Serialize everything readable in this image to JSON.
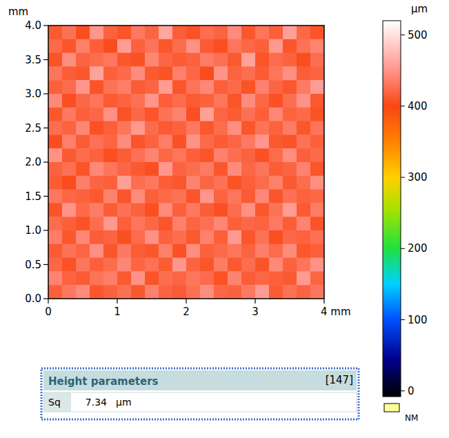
{
  "chart_data": {
    "type": "heatmap",
    "ylabel": "mm",
    "xlim": [
      0,
      4
    ],
    "ylim": [
      0,
      4
    ],
    "xticks": [
      0,
      1,
      2,
      3,
      {
        "value": 4,
        "label": "4 mm"
      }
    ],
    "yticks": [
      {
        "value": 0,
        "label": "0.0"
      },
      0.5,
      {
        "value": 1,
        "label": "1.0"
      },
      1.5,
      {
        "value": 2,
        "label": "2.0"
      },
      2.5,
      {
        "value": 3,
        "label": "3.0"
      },
      3.5,
      {
        "value": 4,
        "label": "4.0"
      }
    ],
    "z": [
      [
        412,
        428,
        405,
        451,
        418,
        409,
        433,
        420,
        462,
        415,
        407,
        426,
        419,
        444,
        411,
        430,
        416,
        458,
        421,
        409
      ],
      [
        423,
        410,
        437,
        416,
        404,
        456,
        418,
        429,
        411,
        425,
        448,
        413,
        406,
        431,
        422,
        417,
        453,
        410,
        428,
        440
      ],
      [
        408,
        446,
        419,
        425,
        432,
        411,
        407,
        441,
        420,
        414,
        418,
        435,
        427,
        412,
        459,
        409,
        424,
        418,
        405,
        426
      ],
      [
        430,
        415,
        411,
        460,
        417,
        423,
        445,
        412,
        408,
        437,
        421,
        404,
        450,
        419,
        426,
        413,
        431,
        447,
        415,
        419
      ],
      [
        417,
        424,
        452,
        409,
        428,
        436,
        414,
        419,
        455,
        410,
        429,
        442,
        416,
        423,
        408,
        438,
        420,
        411,
        434,
        456
      ],
      [
        443,
        406,
        421,
        430,
        413,
        419,
        427,
        450,
        416,
        424,
        413,
        418,
        431,
        409,
        445,
        421,
        407,
        426,
        449,
        412
      ],
      [
        411,
        433,
        417,
        422,
        448,
        408,
        421,
        410,
        429,
        439,
        406,
        457,
        420,
        414,
        427,
        416,
        442,
        419,
        423,
        408
      ],
      [
        426,
        419,
        441,
        407,
        416,
        431,
        453,
        424,
        413,
        418,
        432,
        411,
        425,
        447,
        410,
        429,
        418,
        435,
        411,
        430
      ],
      [
        405,
        437,
        414,
        428,
        420,
        444,
        409,
        418,
        436,
        407,
        449,
        423,
        414,
        420,
        433,
        451,
        412,
        409,
        428,
        417
      ],
      [
        449,
        412,
        425,
        418,
        406,
        415,
        427,
        440,
        421,
        430,
        416,
        409,
        438,
        426,
        418,
        407,
        424,
        446,
        416,
        423
      ],
      [
        418,
        427,
        409,
        443,
        431,
        420,
        412,
        406,
        452,
        419,
        425,
        434,
        411,
        445,
        421,
        430,
        415,
        420,
        439,
        410
      ],
      [
        414,
        404,
        436,
        420,
        417,
        458,
        426,
        432,
        415,
        411,
        440,
        420,
        428,
        408,
        416,
        424,
        437,
        412,
        425,
        447
      ],
      [
        432,
        421,
        418,
        412,
        439,
        410,
        445,
        417,
        423,
        428,
        409,
        451,
        419,
        430,
        413,
        442,
        410,
        427,
        418,
        421
      ],
      [
        409,
        450,
        423,
        435,
        414,
        427,
        418,
        406,
        444,
        416,
        433,
        415,
        406,
        425,
        448,
        411,
        429,
        456,
        413,
        435
      ],
      [
        425,
        417,
        408,
        426,
        453,
        416,
        431,
        421,
        410,
        438,
        420,
        427,
        442,
        417,
        422,
        419,
        433,
        415,
        440,
        409
      ],
      [
        436,
        411,
        442,
        415,
        419,
        406,
        424,
        448,
        418,
        425,
        412,
        439,
        416,
        454,
        410,
        428,
        405,
        422,
        418,
        427
      ],
      [
        413,
        429,
        420,
        447,
        410,
        433,
        415,
        411,
        437,
        407,
        446,
        418,
        423,
        431,
        419,
        436,
        424,
        445,
        411,
        416
      ],
      [
        421,
        408,
        431,
        416,
        425,
        441,
        420,
        428,
        414,
        452,
        419,
        410,
        435,
        412,
        426,
        409,
        443,
        418,
        430,
        449
      ],
      [
        440,
        419,
        413,
        429,
        436,
        412,
        449,
        409,
        426,
        420,
        431,
        424,
        408,
        440,
        415,
        421,
        417,
        412,
        454,
        420
      ],
      [
        416,
        432,
        445,
        410,
        418,
        427,
        411,
        438,
        419,
        413,
        427,
        446,
        421,
        418,
        433,
        455,
        414,
        428,
        419,
        431
      ]
    ],
    "colorbar": {
      "title": "µm",
      "range": [
        -8,
        520
      ],
      "ticks": [
        0,
        100,
        200,
        300,
        400,
        500
      ]
    },
    "legend_label": "NM",
    "parameters": {
      "title": "Height parameters",
      "id": "[147]",
      "rows": [
        {
          "name": "Sq",
          "value": 7.34,
          "unit": "µm"
        }
      ]
    }
  }
}
